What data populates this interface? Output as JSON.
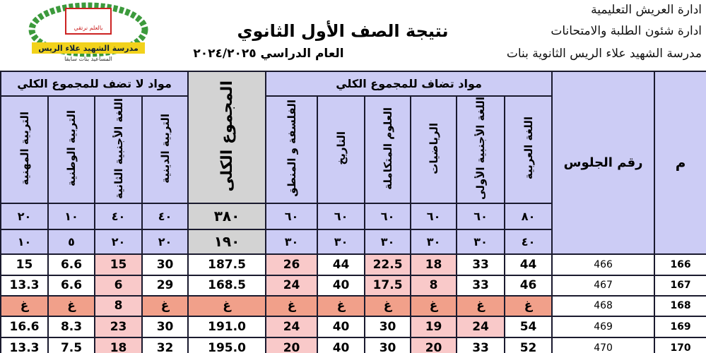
{
  "header": {
    "lines": [
      "ادارة العريش التعليمية",
      "ادارة شئون الطلبة والامتحانات",
      "مدرسة الشهيد علاء الريس الثانوية بنات"
    ],
    "title": "نتيجة الصف الأول الثانوي",
    "year": "العام الدراسي ٢٠٢٤/٢٠٢٥",
    "logo": {
      "school": "مدرسة الشهيد علاء الريس",
      "former": "المساعيد بنات سابقا",
      "motto": "بالعلم نرتقي"
    }
  },
  "table": {
    "col_index": "م",
    "col_seat": "رقم الجلوس",
    "group_added": "مواد تضاف للمجموع الكلي",
    "group_not_added": "مواد لا تضف للمجموع الكلي",
    "subjects_added": [
      "اللغة العربية",
      "اللغة الأجنبية الأولى",
      "الرياضيات",
      "العلوم المتكاملة",
      "التاريخ",
      "الفلسفة و المنطق"
    ],
    "total": "المجموع الكلى",
    "subjects_not_added": [
      "التربية الدينية",
      "اللغة الأجنبية الثانية",
      "التربية الوطنية",
      "التربية المهنية"
    ],
    "max_row": [
      "٨٠",
      "٦٠",
      "٦٠",
      "٦٠",
      "٦٠",
      "٦٠",
      "٣٨٠",
      "٤٠",
      "٤٠",
      "١٠",
      "٢٠"
    ],
    "min_row": [
      "٤٠",
      "٣٠",
      "٣٠",
      "٣٠",
      "٣٠",
      "٣٠",
      "١٩٠",
      "٢٠",
      "٢٠",
      "٥",
      "١٠"
    ],
    "rows": [
      {
        "cells": [
          "166",
          "466",
          "44",
          "33",
          "18",
          "22.5",
          "44",
          "26",
          "187.5",
          "30",
          "15",
          "6.6",
          "15"
        ],
        "fills": [
          "#ffffff",
          "#ffffff",
          "#ffffff",
          "#ffffff",
          "#f9c9c9",
          "#f9c9c9",
          "#ffffff",
          "#f9c9c9",
          "#ffffff",
          "#ffffff",
          "#f9c9c9",
          "#ffffff",
          "#ffffff"
        ]
      },
      {
        "cells": [
          "167",
          "467",
          "46",
          "33",
          "8",
          "17.5",
          "40",
          "24",
          "168.5",
          "29",
          "6",
          "6.6",
          "13.3"
        ],
        "fills": [
          "#ffffff",
          "#ffffff",
          "#ffffff",
          "#ffffff",
          "#f9c9c9",
          "#f9c9c9",
          "#ffffff",
          "#f9c9c9",
          "#ffffff",
          "#ffffff",
          "#f9c9c9",
          "#ffffff",
          "#ffffff"
        ]
      },
      {
        "cells": [
          "168",
          "468",
          "غ",
          "غ",
          "غ",
          "غ",
          "غ",
          "غ",
          "غ",
          "غ",
          "8",
          "غ",
          "غ"
        ],
        "fills": [
          "#ffffff",
          "#ffffff",
          "#f1a08a",
          "#f1a08a",
          "#f1a08a",
          "#f1a08a",
          "#f1a08a",
          "#f1a08a",
          "#f1a08a",
          "#f1a08a",
          "#f9c9c9",
          "#f1a08a",
          "#f1a08a"
        ]
      },
      {
        "cells": [
          "169",
          "469",
          "54",
          "24",
          "19",
          "30",
          "40",
          "24",
          "191.0",
          "30",
          "23",
          "8.3",
          "16.6"
        ],
        "fills": [
          "#ffffff",
          "#ffffff",
          "#ffffff",
          "#f9c9c9",
          "#f9c9c9",
          "#ffffff",
          "#ffffff",
          "#f9c9c9",
          "#ffffff",
          "#ffffff",
          "#f9c9c9",
          "#ffffff",
          "#ffffff"
        ]
      },
      {
        "cells": [
          "170",
          "470",
          "52",
          "33",
          "20",
          "30",
          "40",
          "20",
          "195.0",
          "32",
          "18",
          "7.5",
          "13.3"
        ],
        "fills": [
          "#ffffff",
          "#ffffff",
          "#ffffff",
          "#ffffff",
          "#f9c9c9",
          "#ffffff",
          "#ffffff",
          "#f9c9c9",
          "#ffffff",
          "#ffffff",
          "#f9c9c9",
          "#ffffff",
          "#ffffff"
        ]
      }
    ]
  }
}
